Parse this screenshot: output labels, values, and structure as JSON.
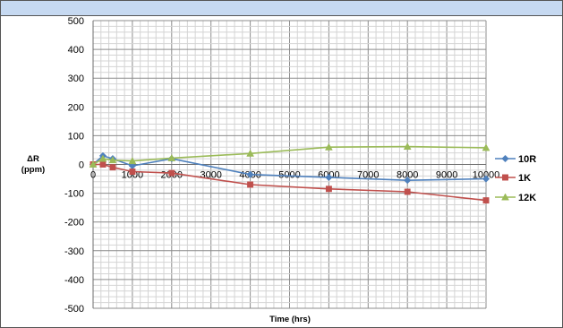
{
  "chart_data": {
    "type": "line",
    "xlabel": "Time (hrs)",
    "ylabel_line1": "ΔR",
    "ylabel_line2": "(ppm)",
    "xlim": [
      0,
      10000
    ],
    "ylim": [
      -500,
      500
    ],
    "x_ticks": [
      0,
      1000,
      2000,
      3000,
      4000,
      5000,
      6000,
      7000,
      8000,
      9000,
      10000
    ],
    "y_ticks": [
      500,
      400,
      300,
      200,
      100,
      0,
      -100,
      -200,
      -300,
      -400,
      -500
    ],
    "x_major_step": 1000,
    "x_minor_step": 200,
    "y_major_step": 100,
    "y_minor_step": 20,
    "grid": true,
    "legend_position": "right",
    "series": [
      {
        "name": "10R",
        "color": "#4f81bd",
        "marker": "diamond",
        "x": [
          0,
          250,
          500,
          1000,
          2000,
          4000,
          6000,
          8000,
          10000
        ],
        "y": [
          0,
          30,
          20,
          -5,
          20,
          -35,
          -45,
          -55,
          -50
        ]
      },
      {
        "name": "1K",
        "color": "#c0504d",
        "marker": "square",
        "x": [
          0,
          250,
          500,
          1000,
          2000,
          4000,
          6000,
          8000,
          10000
        ],
        "y": [
          0,
          0,
          -10,
          -25,
          -30,
          -70,
          -85,
          -95,
          -125
        ]
      },
      {
        "name": "12K",
        "color": "#9bbb59",
        "marker": "triangle",
        "x": [
          0,
          250,
          500,
          1000,
          2000,
          4000,
          6000,
          8000,
          10000
        ],
        "y": [
          0,
          20,
          15,
          12,
          22,
          38,
          60,
          62,
          58
        ]
      }
    ]
  }
}
